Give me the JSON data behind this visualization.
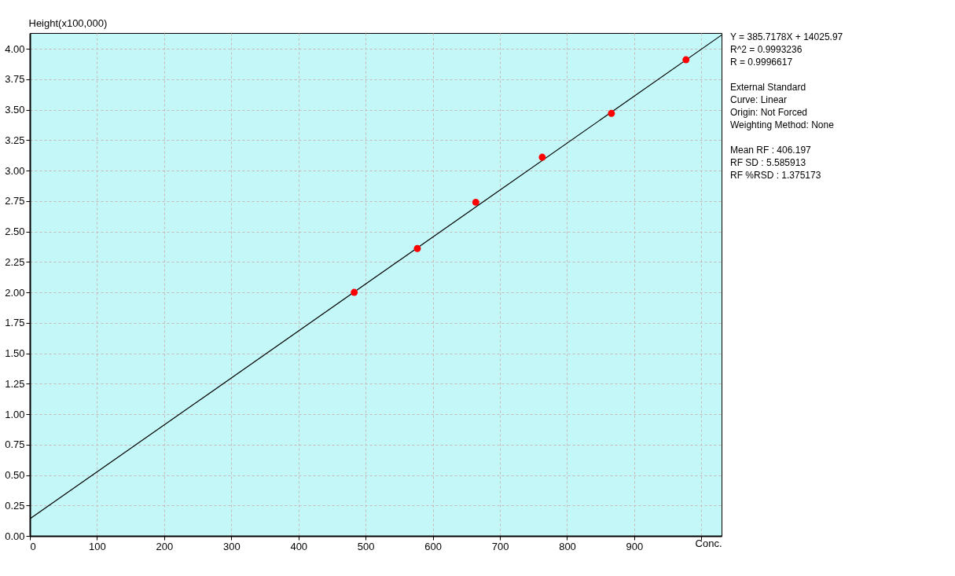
{
  "chart_data": {
    "type": "scatter",
    "ylabel": "Height(x100,000)",
    "xlabel": "Conc.",
    "xlim": [
      0,
      1030
    ],
    "ylim": [
      0,
      4.13
    ],
    "xticks": [
      0,
      100,
      200,
      300,
      400,
      500,
      600,
      700,
      800,
      900,
      {
        "value": 1000,
        "label": null
      }
    ],
    "yticks": [
      {
        "value": 0,
        "label": "0.00"
      },
      {
        "value": 0.25,
        "label": "0.25"
      },
      {
        "value": 0.5,
        "label": "0.50"
      },
      {
        "value": 0.75,
        "label": "0.75"
      },
      {
        "value": 1,
        "label": "1.00"
      },
      {
        "value": 1.25,
        "label": "1.25"
      },
      {
        "value": 1.5,
        "label": "1.50"
      },
      {
        "value": 1.75,
        "label": "1.75"
      },
      {
        "value": 2,
        "label": "2.00"
      },
      {
        "value": 2.25,
        "label": "2.25"
      },
      {
        "value": 2.5,
        "label": "2.50"
      },
      {
        "value": 2.75,
        "label": "2.75"
      },
      {
        "value": 3,
        "label": "3.00"
      },
      {
        "value": 3.25,
        "label": "3.25"
      },
      {
        "value": 3.5,
        "label": "3.50"
      },
      {
        "value": 3.75,
        "label": "3.75"
      },
      {
        "value": 4,
        "label": "4.00"
      }
    ],
    "grid": true,
    "series": [
      {
        "marker": "circle",
        "color": "#ff0000",
        "x": [
          483,
          577,
          664,
          763,
          866,
          977
        ],
        "values": [
          2.0,
          2.36,
          2.74,
          3.11,
          3.47,
          3.91
        ]
      },
      {
        "type": "line",
        "marker": "none",
        "color": "#000000",
        "x": [
          0,
          1030
        ],
        "values": [
          0.14,
          4.113
        ]
      }
    ],
    "annotations": [
      "Y = 385.7178X + 14025.97\nR^2 = 0.9993236\nR = 0.9996617",
      "External Standard\nCurve: Linear\nOrigin: Not Forced\nWeighting Method: None",
      "Mean RF :  406.197\nRF SD : 5.585913\nRF %RSD : 1.375173"
    ]
  }
}
